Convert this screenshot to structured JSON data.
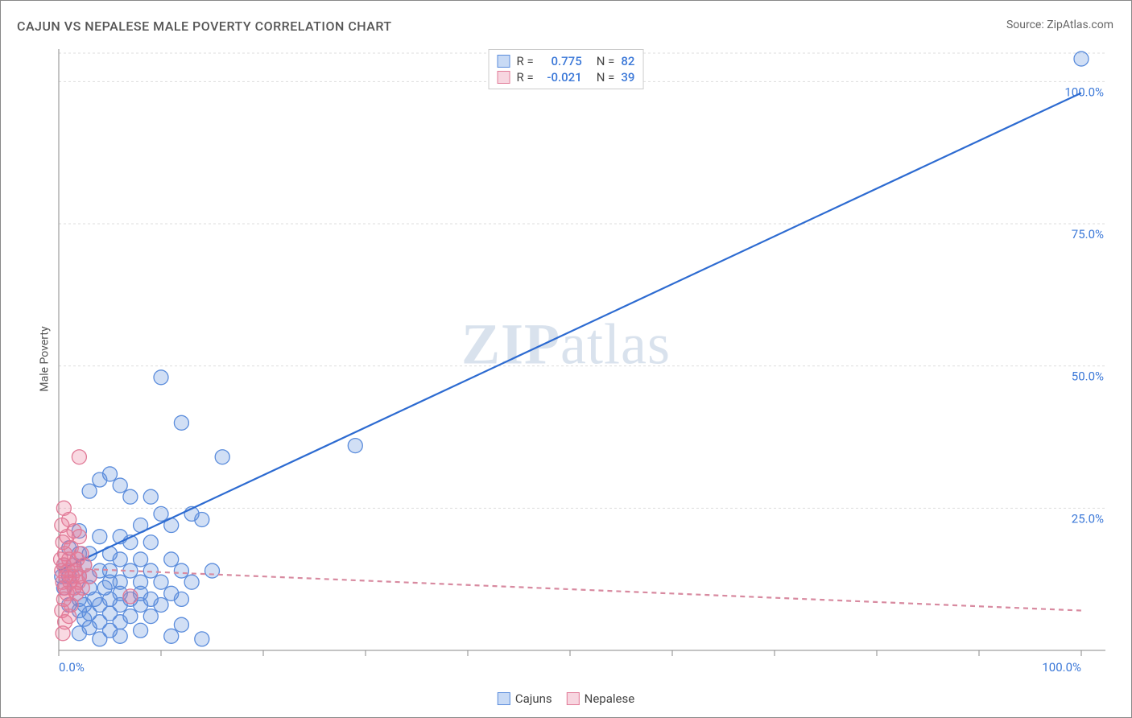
{
  "title": "CAJUN VS NEPALESE MALE POVERTY CORRELATION CHART",
  "source_label": "Source:",
  "source_name": "ZipAtlas.com",
  "ylabel": "Male Poverty",
  "watermark_a": "ZIP",
  "watermark_b": "atlas",
  "chart": {
    "type": "scatter",
    "xlim": [
      0,
      100
    ],
    "ylim": [
      0,
      105
    ],
    "xtick_step": 10,
    "ytick_step_major": 25,
    "xtick_labels": {
      "0": "0.0%",
      "100": "100.0%"
    },
    "ytick_labels": {
      "25": "25.0%",
      "50": "50.0%",
      "75": "75.0%",
      "100": "100.0%"
    },
    "background_color": "#ffffff",
    "grid_color": "#dddddd",
    "axis_color": "#888888",
    "label_color": "#3b78d8",
    "marker_radius": 9,
    "marker_stroke_width": 1.3,
    "line_width": 2.2,
    "series": [
      {
        "name": "Cajuns",
        "fill": "rgba(90,140,220,0.28)",
        "stroke": "#5a8cdc",
        "line_color": "#2d6bd1",
        "line_dash": "none",
        "legend_fill": "#c8daf5",
        "legend_stroke": "#5a8cdc",
        "R": "0.775",
        "N": "82",
        "trend": {
          "x1": 0,
          "y1": 14,
          "x2": 100,
          "y2": 98
        },
        "points": [
          [
            100,
            104
          ],
          [
            10,
            48
          ],
          [
            12,
            40
          ],
          [
            16,
            34
          ],
          [
            29,
            36
          ],
          [
            4,
            30
          ],
          [
            5,
            31
          ],
          [
            6,
            29
          ],
          [
            3,
            28
          ],
          [
            7,
            27
          ],
          [
            9,
            27
          ],
          [
            10,
            24
          ],
          [
            13,
            24
          ],
          [
            8,
            22
          ],
          [
            11,
            22
          ],
          [
            14,
            23
          ],
          [
            2,
            21
          ],
          [
            4,
            20
          ],
          [
            6,
            20
          ],
          [
            7,
            19
          ],
          [
            9,
            19
          ],
          [
            1,
            18
          ],
          [
            2,
            17
          ],
          [
            3,
            17
          ],
          [
            5,
            17
          ],
          [
            6,
            16
          ],
          [
            8,
            16
          ],
          [
            11,
            16
          ],
          [
            0.5,
            15
          ],
          [
            1.5,
            15
          ],
          [
            2.5,
            15
          ],
          [
            4,
            14
          ],
          [
            5,
            14
          ],
          [
            7,
            14
          ],
          [
            9,
            14
          ],
          [
            12,
            14
          ],
          [
            15,
            14
          ],
          [
            0.3,
            13
          ],
          [
            1,
            13
          ],
          [
            2,
            13
          ],
          [
            3,
            13
          ],
          [
            5,
            12
          ],
          [
            6,
            12
          ],
          [
            8,
            12
          ],
          [
            10,
            12
          ],
          [
            13,
            12
          ],
          [
            0.5,
            11
          ],
          [
            1.5,
            11
          ],
          [
            3,
            11
          ],
          [
            4.5,
            11
          ],
          [
            6,
            10
          ],
          [
            8,
            10
          ],
          [
            11,
            10
          ],
          [
            2,
            9
          ],
          [
            3.5,
            9
          ],
          [
            5,
            9
          ],
          [
            7,
            9
          ],
          [
            9,
            9
          ],
          [
            12,
            9
          ],
          [
            1,
            8
          ],
          [
            2.5,
            8
          ],
          [
            4,
            8
          ],
          [
            6,
            8
          ],
          [
            8,
            8
          ],
          [
            10,
            8
          ],
          [
            2,
            7
          ],
          [
            3,
            6.5
          ],
          [
            5,
            6.5
          ],
          [
            7,
            6
          ],
          [
            9,
            6
          ],
          [
            2.5,
            5.5
          ],
          [
            4,
            5
          ],
          [
            6,
            5
          ],
          [
            12,
            4.5
          ],
          [
            3,
            4
          ],
          [
            5,
            3.5
          ],
          [
            8,
            3.5
          ],
          [
            2,
            3
          ],
          [
            6,
            2.5
          ],
          [
            4,
            2
          ],
          [
            11,
            2.5
          ],
          [
            14,
            2
          ]
        ]
      },
      {
        "name": "Nepalese",
        "fill": "rgba(235,120,150,0.28)",
        "stroke": "#e17a97",
        "line_color": "#d88aa0",
        "line_dash": "6 5",
        "legend_fill": "#f7d6e0",
        "legend_stroke": "#e17a97",
        "R": "-0.021",
        "N": "39",
        "trend": {
          "x1": 0,
          "y1": 14.5,
          "x2": 100,
          "y2": 7
        },
        "points": [
          [
            2,
            34
          ],
          [
            0.5,
            25
          ],
          [
            1,
            23
          ],
          [
            0.3,
            22
          ],
          [
            1.5,
            21
          ],
          [
            0.8,
            20
          ],
          [
            2,
            20
          ],
          [
            0.4,
            19
          ],
          [
            1.2,
            18
          ],
          [
            0.6,
            17
          ],
          [
            2.2,
            17
          ],
          [
            0.2,
            16
          ],
          [
            1,
            16
          ],
          [
            1.8,
            16
          ],
          [
            0.5,
            15
          ],
          [
            1.4,
            15
          ],
          [
            2.5,
            15
          ],
          [
            0.3,
            14
          ],
          [
            0.9,
            14
          ],
          [
            1.6,
            14
          ],
          [
            0.7,
            13
          ],
          [
            1.3,
            13
          ],
          [
            2,
            13
          ],
          [
            3,
            13
          ],
          [
            0.4,
            12
          ],
          [
            1.1,
            12
          ],
          [
            1.9,
            12
          ],
          [
            0.6,
            11
          ],
          [
            1.5,
            11
          ],
          [
            2.3,
            11
          ],
          [
            7,
            9.5
          ],
          [
            0.8,
            10
          ],
          [
            1.7,
            10
          ],
          [
            0.5,
            9
          ],
          [
            1.2,
            8
          ],
          [
            0.3,
            7
          ],
          [
            1,
            6
          ],
          [
            0.6,
            5
          ],
          [
            0.4,
            3
          ]
        ]
      }
    ]
  },
  "legend_top": {
    "R_label": "R",
    "N_label": "N",
    "eq": "="
  },
  "legend_bottom": {
    "s1": "Cajuns",
    "s2": "Nepalese"
  }
}
